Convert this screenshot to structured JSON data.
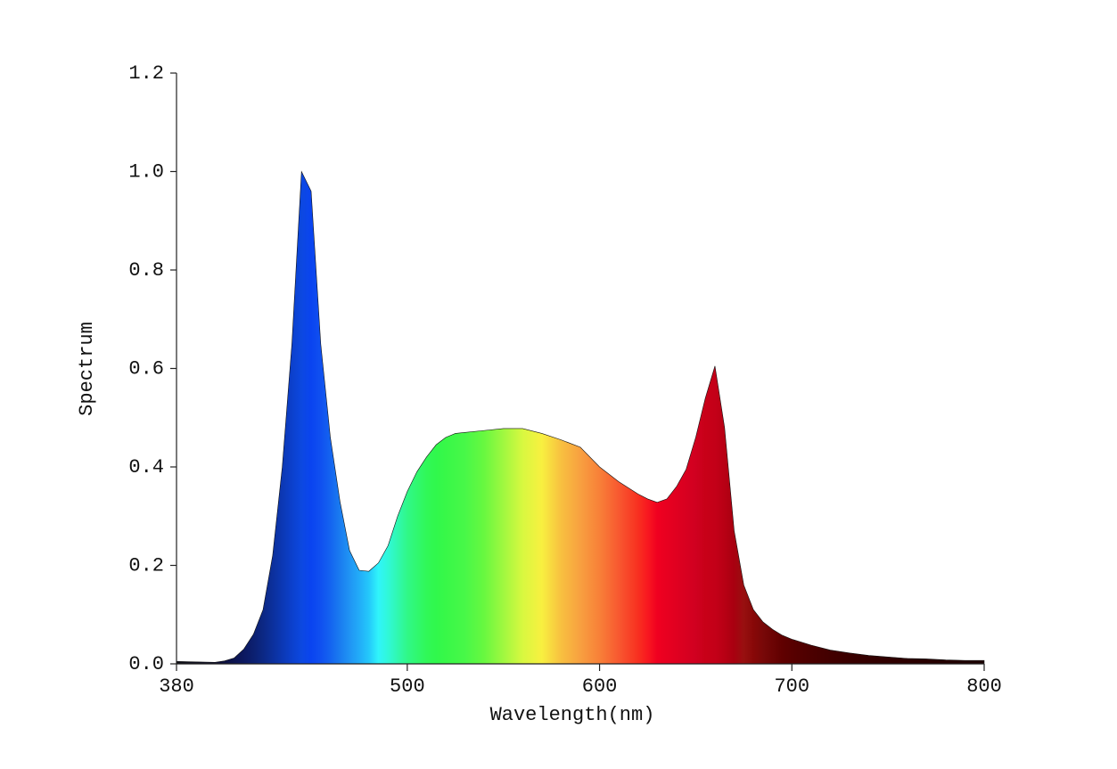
{
  "chart_data": {
    "type": "area",
    "xlabel": "Wavelength(nm)",
    "ylabel": "Spectrum",
    "x": [
      380,
      390,
      400,
      405,
      410,
      415,
      420,
      425,
      430,
      435,
      440,
      445,
      450,
      455,
      460,
      465,
      470,
      475,
      480,
      485,
      490,
      495,
      500,
      505,
      510,
      515,
      520,
      525,
      530,
      540,
      550,
      560,
      570,
      580,
      590,
      600,
      610,
      620,
      625,
      630,
      635,
      640,
      645,
      650,
      655,
      660,
      665,
      670,
      675,
      680,
      685,
      690,
      695,
      700,
      710,
      720,
      730,
      740,
      750,
      760,
      770,
      780,
      790,
      800
    ],
    "values": [
      0.005,
      0.004,
      0.003,
      0.006,
      0.012,
      0.03,
      0.06,
      0.11,
      0.22,
      0.4,
      0.65,
      1.0,
      0.96,
      0.65,
      0.46,
      0.33,
      0.23,
      0.19,
      0.188,
      0.205,
      0.24,
      0.3,
      0.35,
      0.39,
      0.42,
      0.445,
      0.46,
      0.468,
      0.47,
      0.474,
      0.478,
      0.478,
      0.468,
      0.455,
      0.44,
      0.4,
      0.37,
      0.345,
      0.335,
      0.328,
      0.335,
      0.36,
      0.395,
      0.46,
      0.54,
      0.605,
      0.48,
      0.27,
      0.16,
      0.11,
      0.085,
      0.07,
      0.058,
      0.05,
      0.038,
      0.028,
      0.022,
      0.017,
      0.014,
      0.011,
      0.01,
      0.008,
      0.007,
      0.007
    ],
    "colors": [
      "#101018",
      "#101020",
      "#0c0c30",
      "#0c1040",
      "#0c1450",
      "#0c1860",
      "#0c2070",
      "#0c2884",
      "#0c309c",
      "#0c38b4",
      "#0c40cc",
      "#0c48e0",
      "#0a44f0",
      "#1050f0",
      "#1464f0",
      "#1a7cf0",
      "#2094f4",
      "#22acf8",
      "#24c8fa",
      "#30f4fa",
      "#30f8d8",
      "#30f8b0",
      "#30f888",
      "#30f870",
      "#30f858",
      "#30f84c",
      "#38f848",
      "#40f848",
      "#48f848",
      "#68f840",
      "#a0f840",
      "#d8f840",
      "#f8f040",
      "#f8c040",
      "#f8a040",
      "#f88038",
      "#f85830",
      "#f83020",
      "#f81820",
      "#f00020",
      "#e80020",
      "#e00020",
      "#d80020",
      "#d00020",
      "#c80018",
      "#c40018",
      "#b80014",
      "#a80010",
      "#981010",
      "#880808",
      "#780808",
      "#6c0404",
      "#600000",
      "#580000",
      "#4c0000",
      "#420000",
      "#3a0000",
      "#340000",
      "#300000",
      "#2c0000",
      "#280000",
      "#240000",
      "#200000",
      "#1c0000"
    ],
    "xlim": [
      380,
      800
    ],
    "xticks": [
      380,
      500,
      600,
      700,
      800
    ],
    "ylim": [
      0,
      1.2
    ],
    "yticks": [
      {
        "value": 0,
        "label": "0.0"
      },
      0.2,
      0.4,
      0.6,
      0.8,
      {
        "value": 1,
        "label": "1.0"
      },
      1.2
    ]
  }
}
